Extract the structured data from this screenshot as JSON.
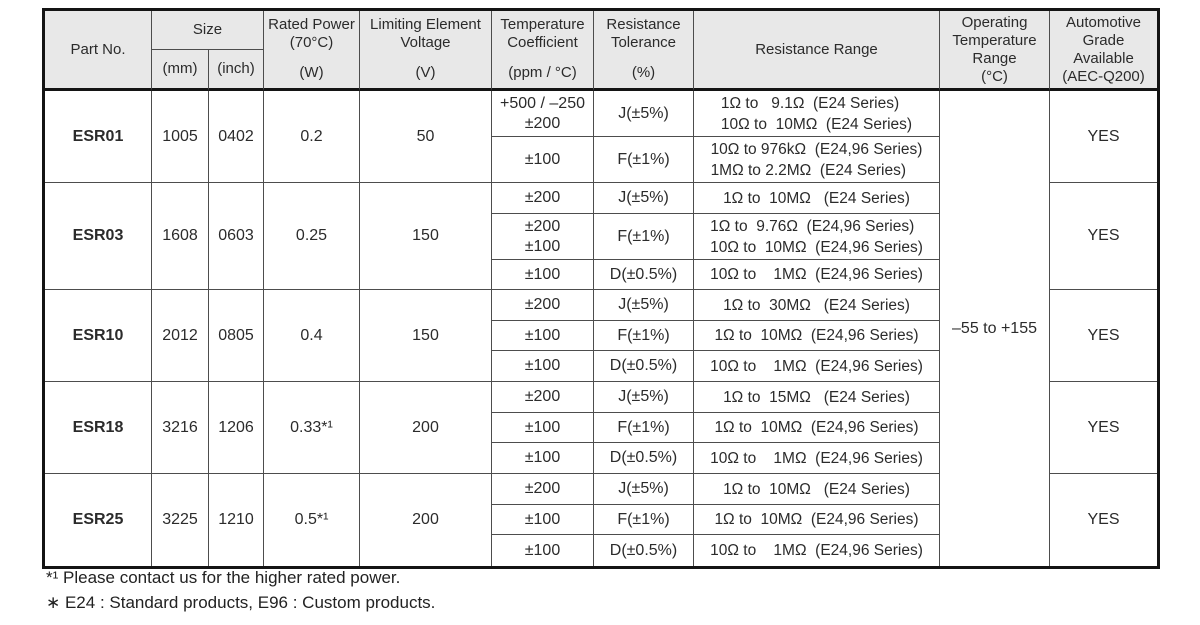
{
  "header": {
    "part_no": "Part No.",
    "size": "Size",
    "size_mm": "(mm)",
    "size_inch": "(inch)",
    "rated_power_l1": "Rated Power",
    "rated_power_l2": "(70°C)",
    "rated_power_unit": "(W)",
    "voltage_l1": "Limiting Element",
    "voltage_l2": "Voltage",
    "voltage_unit": "(V)",
    "temp_coeff_l1": "Temperature",
    "temp_coeff_l2": "Coefficient",
    "temp_coeff_unit": "(ppm / °C)",
    "tolerance_l1": "Resistance",
    "tolerance_l2": "Tolerance",
    "tolerance_unit": "(%)",
    "resistance_range": "Resistance Range",
    "op_temp_l1": "Operating",
    "op_temp_l2": "Temperature",
    "op_temp_l3": "Range",
    "op_temp_l4": "(°C)",
    "auto_l1": "Automotive",
    "auto_l2": "Grade",
    "auto_l3": "Available",
    "auto_l4": "(AEC-Q200)"
  },
  "operating_temperature": "–55 to +155",
  "groups": [
    {
      "part": "ESR01",
      "mm": "1005",
      "inch": "0402",
      "power": "0.2",
      "voltage": "50",
      "automotive": "YES",
      "subrows": [
        {
          "tc": [
            "+500 / –250",
            "±200"
          ],
          "tol": "J(±5%)",
          "range": [
            "1Ω to   9.1Ω  (E24 Series)",
            "10Ω to  10MΩ  (E24 Series)"
          ]
        },
        {
          "tc": [
            "±100"
          ],
          "tol": "F(±1%)",
          "range": [
            "10Ω to 976kΩ  (E24,96 Series)",
            "1MΩ to 2.2MΩ  (E24 Series)"
          ]
        }
      ]
    },
    {
      "part": "ESR03",
      "mm": "1608",
      "inch": "0603",
      "power": "0.25",
      "voltage": "150",
      "automotive": "YES",
      "subrows": [
        {
          "tc": [
            "±200"
          ],
          "tol": "J(±5%)",
          "range": [
            "1Ω to  10MΩ   (E24 Series)"
          ]
        },
        {
          "tc": [
            "±200",
            "±100"
          ],
          "tol": "F(±1%)",
          "range": [
            "1Ω to  9.76Ω  (E24,96 Series)",
            "10Ω to  10MΩ  (E24,96 Series)"
          ]
        },
        {
          "tc": [
            "±100"
          ],
          "tol": "D(±0.5%)",
          "range": [
            "10Ω to    1MΩ  (E24,96 Series)"
          ]
        }
      ]
    },
    {
      "part": "ESR10",
      "mm": "2012",
      "inch": "0805",
      "power": "0.4",
      "voltage": "150",
      "automotive": "YES",
      "subrows": [
        {
          "tc": [
            "±200"
          ],
          "tol": "J(±5%)",
          "range": [
            "1Ω to  30MΩ   (E24 Series)"
          ]
        },
        {
          "tc": [
            "±100"
          ],
          "tol": "F(±1%)",
          "range": [
            "1Ω to  10MΩ  (E24,96 Series)"
          ]
        },
        {
          "tc": [
            "±100"
          ],
          "tol": "D(±0.5%)",
          "range": [
            "10Ω to    1MΩ  (E24,96 Series)"
          ]
        }
      ]
    },
    {
      "part": "ESR18",
      "mm": "3216",
      "inch": "1206",
      "power": "0.33*¹",
      "voltage": "200",
      "automotive": "YES",
      "subrows": [
        {
          "tc": [
            "±200"
          ],
          "tol": "J(±5%)",
          "range": [
            "1Ω to  15MΩ   (E24 Series)"
          ]
        },
        {
          "tc": [
            "±100"
          ],
          "tol": "F(±1%)",
          "range": [
            "1Ω to  10MΩ  (E24,96 Series)"
          ]
        },
        {
          "tc": [
            "±100"
          ],
          "tol": "D(±0.5%)",
          "range": [
            "10Ω to    1MΩ  (E24,96 Series)"
          ]
        }
      ]
    },
    {
      "part": "ESR25",
      "mm": "3225",
      "inch": "1210",
      "power": "0.5*¹",
      "voltage": "200",
      "automotive": "YES",
      "subrows": [
        {
          "tc": [
            "±200"
          ],
          "tol": "J(±5%)",
          "range": [
            "1Ω to  10MΩ   (E24 Series)"
          ]
        },
        {
          "tc": [
            "±100"
          ],
          "tol": "F(±1%)",
          "range": [
            "1Ω to  10MΩ  (E24,96 Series)"
          ]
        },
        {
          "tc": [
            "±100"
          ],
          "tol": "D(±0.5%)",
          "range": [
            "10Ω to    1MΩ  (E24,96 Series)"
          ]
        }
      ]
    }
  ],
  "footnotes": [
    "*¹ Please contact us for the higher rated power.",
    "∗ E24 : Standard products, E96 : Custom products."
  ]
}
